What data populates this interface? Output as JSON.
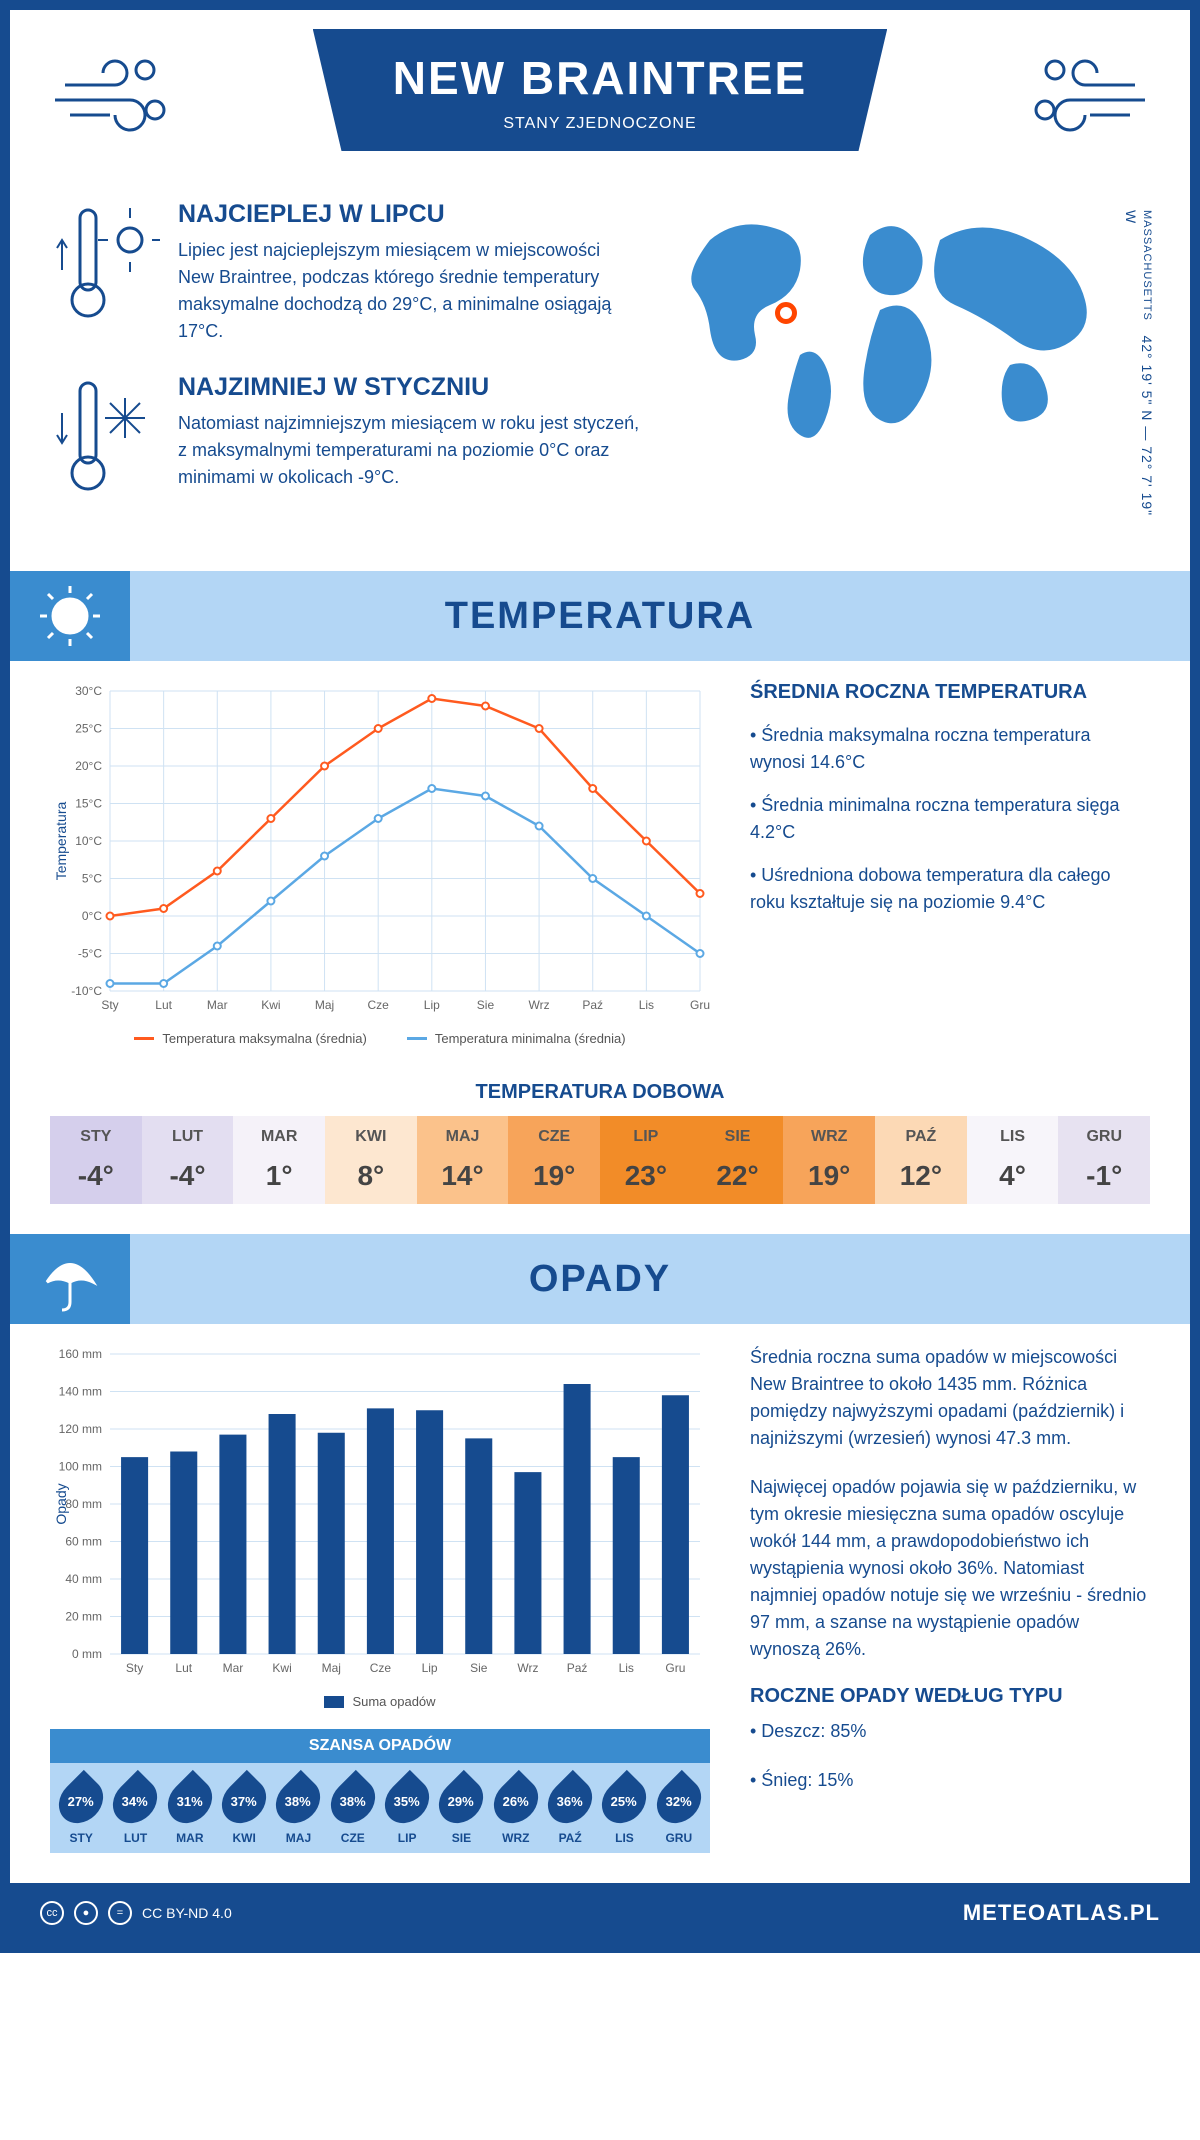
{
  "header": {
    "title": "NEW BRAINTREE",
    "subtitle": "STANY ZJEDNOCZONE"
  },
  "coords": {
    "lat": "42° 19' 5\" N",
    "lon": "72° 7' 19\" W",
    "state": "MASSACHUSETTS",
    "sep": "—"
  },
  "intro": {
    "warm": {
      "title": "NAJCIEPLEJ W LIPCU",
      "text": "Lipiec jest najcieplejszym miesiącem w miejscowości New Braintree, podczas którego średnie temperatury maksymalne dochodzą do 29°C, a minimalne osiągają 17°C."
    },
    "cold": {
      "title": "NAJZIMNIEJ W STYCZNIU",
      "text": "Natomiast najzimniejszym miesiącem w roku jest styczeń, z maksymalnymi temperaturami na poziomie 0°C oraz minimami w okolicach -9°C."
    }
  },
  "temp_banner": "TEMPERATURA",
  "months_short": [
    "Sty",
    "Lut",
    "Mar",
    "Kwi",
    "Maj",
    "Cze",
    "Lip",
    "Sie",
    "Wrz",
    "Paź",
    "Lis",
    "Gru"
  ],
  "months_caps": [
    "STY",
    "LUT",
    "MAR",
    "KWI",
    "MAJ",
    "CZE",
    "LIP",
    "SIE",
    "WRZ",
    "PAŹ",
    "LIS",
    "GRU"
  ],
  "temp_chart": {
    "ylabel": "Temperatura",
    "ylim": [
      -10,
      30
    ],
    "ytick_step": 5,
    "max_series": {
      "label": "Temperatura maksymalna (średnia)",
      "color": "#ff5a1f",
      "values": [
        0,
        1,
        6,
        13,
        20,
        25,
        29,
        28,
        25,
        17,
        10,
        3
      ]
    },
    "min_series": {
      "label": "Temperatura minimalna (średnia)",
      "color": "#5ba8e4",
      "values": [
        -9,
        -9,
        -4,
        2,
        8,
        13,
        17,
        16,
        12,
        5,
        0,
        -5
      ]
    },
    "grid_color": "#cfe2f3",
    "bg": "#ffffff"
  },
  "temp_info": {
    "heading": "ŚREDNIA ROCZNA TEMPERATURA",
    "b1": "• Średnia maksymalna roczna temperatura wynosi 14.6°C",
    "b2": "• Średnia minimalna roczna temperatura sięga 4.2°C",
    "b3": "• Uśredniona dobowa temperatura dla całego roku kształtuje się na poziomie 9.4°C"
  },
  "daily": {
    "title": "TEMPERATURA DOBOWA",
    "values": [
      "-4°",
      "-4°",
      "1°",
      "8°",
      "14°",
      "19°",
      "23°",
      "22°",
      "19°",
      "12°",
      "4°",
      "-1°"
    ],
    "colors": [
      "#d5cfec",
      "#e3def1",
      "#f5f2f9",
      "#fde7d0",
      "#fbc28b",
      "#f7a45a",
      "#f28c28",
      "#f28c28",
      "#f7a45a",
      "#fcd9b5",
      "#f7f5fa",
      "#e7e2f1"
    ]
  },
  "precip_banner": "OPADY",
  "precip_chart": {
    "ylabel": "Opady",
    "ylim": [
      0,
      160
    ],
    "ytick_step": 20,
    "values": [
      105,
      108,
      117,
      128,
      118,
      131,
      130,
      115,
      97,
      144,
      105,
      138
    ],
    "bar_color": "#164b8f",
    "grid_color": "#cfe2f3",
    "legend": "Suma opadów"
  },
  "precip_info": {
    "p1": "Średnia roczna suma opadów w miejscowości New Braintree to około 1435 mm. Różnica pomiędzy najwyższymi opadami (październik) i najniższymi (wrzesień) wynosi 47.3 mm.",
    "p2": "Najwięcej opadów pojawia się w październiku, w tym okresie miesięczna suma opadów oscyluje wokół 144 mm, a prawdopodobieństwo ich wystąpienia wynosi około 36%. Natomiast najmniej opadów notuje się we wrześniu - średnio 97 mm, a szanse na wystąpienie opadów wynoszą 26%.",
    "type_heading": "ROCZNE OPADY WEDŁUG TYPU",
    "rain": "• Deszcz: 85%",
    "snow": "• Śnieg: 15%"
  },
  "chance": {
    "title": "SZANSA OPADÓW",
    "values": [
      "27%",
      "34%",
      "31%",
      "37%",
      "38%",
      "38%",
      "35%",
      "29%",
      "26%",
      "36%",
      "25%",
      "32%"
    ]
  },
  "footer": {
    "license": "CC BY-ND 4.0",
    "site": "METEOATLAS.PL"
  }
}
